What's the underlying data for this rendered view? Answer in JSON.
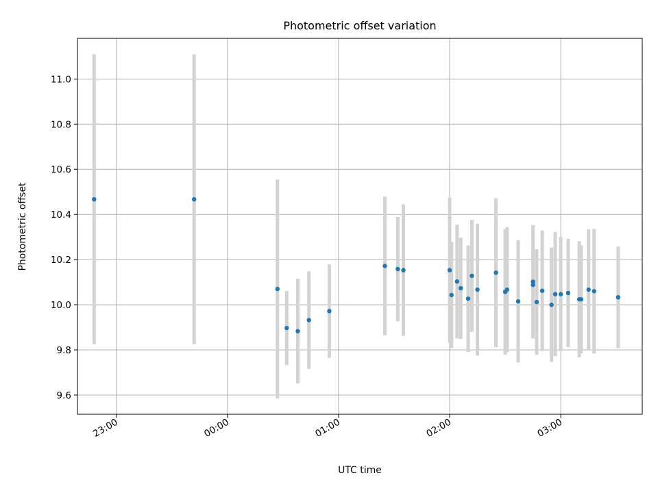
{
  "chart_data": {
    "type": "scatter",
    "title": "Photometric offset variation",
    "xlabel": "UTC time",
    "ylabel": "Photometric offset",
    "grid": true,
    "xlim": [
      "22:39",
      "03:44"
    ],
    "ylim": [
      9.515,
      11.18
    ],
    "x_ticks": [
      "23:00",
      "00:00",
      "01:00",
      "02:00",
      "03:00"
    ],
    "y_ticks": [
      "9.6",
      "9.8",
      "10.0",
      "10.2",
      "10.4",
      "10.6",
      "10.8",
      "11.0"
    ],
    "colors": {
      "point": "#1f77b4",
      "errorbar": "#d3d3d3"
    },
    "points": [
      {
        "x": "22:48",
        "y": 10.467,
        "lo": 9.825,
        "hi": 11.109
      },
      {
        "x": "23:42",
        "y": 10.467,
        "lo": 9.825,
        "hi": 11.109
      },
      {
        "x": "00:27",
        "y": 10.07,
        "lo": 9.585,
        "hi": 10.555
      },
      {
        "x": "00:32",
        "y": 9.897,
        "lo": 9.733,
        "hi": 10.061
      },
      {
        "x": "00:38",
        "y": 9.883,
        "lo": 9.651,
        "hi": 10.115
      },
      {
        "x": "00:44",
        "y": 9.932,
        "lo": 9.716,
        "hi": 10.148
      },
      {
        "x": "00:55",
        "y": 9.972,
        "lo": 9.765,
        "hi": 10.179
      },
      {
        "x": "01:25",
        "y": 10.172,
        "lo": 9.865,
        "hi": 10.479
      },
      {
        "x": "01:32",
        "y": 10.158,
        "lo": 9.927,
        "hi": 10.389
      },
      {
        "x": "01:35",
        "y": 10.153,
        "lo": 9.862,
        "hi": 10.444
      },
      {
        "x": "02:00",
        "y": 10.153,
        "lo": 9.832,
        "hi": 10.474
      },
      {
        "x": "02:01",
        "y": 10.043,
        "lo": 9.808,
        "hi": 10.278
      },
      {
        "x": "02:04",
        "y": 10.103,
        "lo": 9.851,
        "hi": 10.355
      },
      {
        "x": "02:06",
        "y": 10.073,
        "lo": 9.849,
        "hi": 10.297
      },
      {
        "x": "02:10",
        "y": 10.027,
        "lo": 9.791,
        "hi": 10.263
      },
      {
        "x": "02:12",
        "y": 10.128,
        "lo": 9.88,
        "hi": 10.376
      },
      {
        "x": "02:15",
        "y": 10.067,
        "lo": 9.775,
        "hi": 10.359
      },
      {
        "x": "02:25",
        "y": 10.142,
        "lo": 9.812,
        "hi": 10.472
      },
      {
        "x": "02:30",
        "y": 10.057,
        "lo": 9.779,
        "hi": 10.335
      },
      {
        "x": "02:31",
        "y": 10.067,
        "lo": 9.79,
        "hi": 10.344
      },
      {
        "x": "02:37",
        "y": 10.015,
        "lo": 9.744,
        "hi": 10.286
      },
      {
        "x": "02:45",
        "y": 10.088,
        "lo": 9.851,
        "hi": 10.325
      },
      {
        "x": "02:45",
        "y": 10.102,
        "lo": 9.851,
        "hi": 10.353
      },
      {
        "x": "02:47",
        "y": 10.012,
        "lo": 9.778,
        "hi": 10.246
      },
      {
        "x": "02:50",
        "y": 10.062,
        "lo": 9.795,
        "hi": 10.329
      },
      {
        "x": "02:55",
        "y": 10.0,
        "lo": 9.747,
        "hi": 10.253
      },
      {
        "x": "02:57",
        "y": 10.047,
        "lo": 9.772,
        "hi": 10.322
      },
      {
        "x": "03:00",
        "y": 10.047,
        "lo": 9.794,
        "hi": 10.3
      },
      {
        "x": "03:04",
        "y": 10.052,
        "lo": 9.812,
        "hi": 10.292
      },
      {
        "x": "03:10",
        "y": 10.024,
        "lo": 9.767,
        "hi": 10.281
      },
      {
        "x": "03:11",
        "y": 10.024,
        "lo": 9.785,
        "hi": 10.263
      },
      {
        "x": "03:15",
        "y": 10.067,
        "lo": 9.8,
        "hi": 10.334
      },
      {
        "x": "03:18",
        "y": 10.06,
        "lo": 9.784,
        "hi": 10.336
      },
      {
        "x": "03:31",
        "y": 10.033,
        "lo": 9.808,
        "hi": 10.258
      }
    ]
  }
}
